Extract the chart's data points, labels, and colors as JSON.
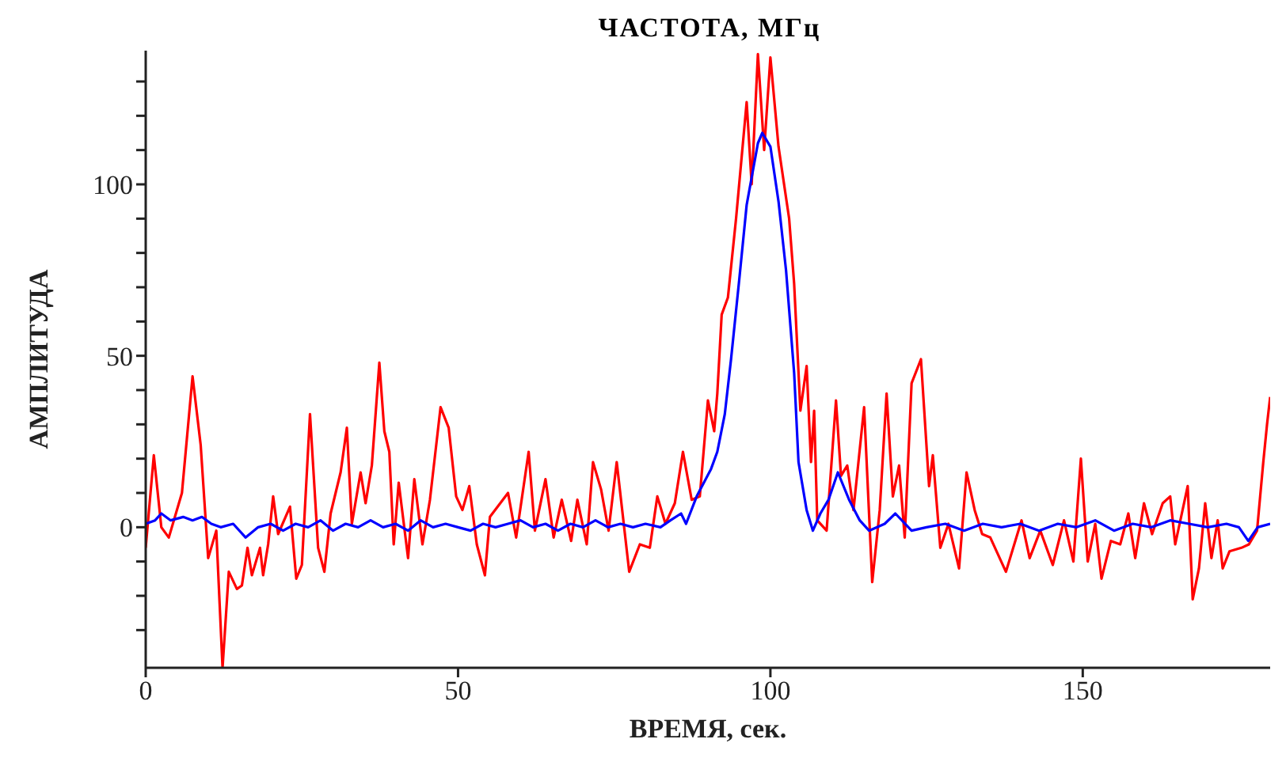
{
  "chart_data": {
    "type": "line",
    "title": "ЧАСТОТА, МГц",
    "xlabel": "ВРЕМЯ, сек.",
    "ylabel": "АМПЛИТУДА",
    "xlim": [
      0,
      180
    ],
    "xticks": [
      0,
      50,
      100,
      150
    ],
    "ylim": [
      -41,
      139
    ],
    "yticks": [
      {
        "value": -30,
        "label": null
      },
      {
        "value": -20,
        "label": null
      },
      {
        "value": -10,
        "label": null
      },
      0,
      {
        "value": 10,
        "label": null
      },
      {
        "value": 20,
        "label": null
      },
      {
        "value": 30,
        "label": null
      },
      {
        "value": 40,
        "label": null
      },
      50,
      {
        "value": 60,
        "label": null
      },
      {
        "value": 70,
        "label": null
      },
      {
        "value": 80,
        "label": null
      },
      {
        "value": 90,
        "label": null
      },
      100,
      {
        "value": 110,
        "label": null
      },
      {
        "value": 120,
        "label": null
      },
      {
        "value": 130,
        "label": null
      }
    ],
    "line_style": "solid",
    "marker": "none",
    "series": [
      {
        "color": "#ff0000",
        "x": [
          0,
          1.3,
          2.5,
          3.7,
          5.8,
          7.5,
          8.8,
          10,
          11.3,
          12.3,
          13.3,
          14.6,
          15.4,
          16.3,
          17,
          18.3,
          18.8,
          19.6,
          20.4,
          21.2,
          23.1,
          24.1,
          25,
          26.3,
          27.6,
          28.6,
          29.6,
          31.2,
          32.2,
          33,
          34.4,
          35.2,
          36.2,
          37.4,
          38.2,
          39,
          39.7,
          40.5,
          42,
          43,
          44.3,
          45.5,
          47.2,
          48.5,
          49.7,
          50.7,
          51.8,
          53,
          54.3,
          55.1,
          58,
          59.3,
          61.3,
          62.3,
          64,
          65.3,
          66.6,
          68.1,
          69.1,
          70.6,
          71.6,
          72.9,
          74.1,
          75.4,
          77.4,
          79.1,
          80.7,
          81.9,
          83.2,
          84.7,
          86,
          87.4,
          88.7,
          90,
          91,
          91.5,
          92.2,
          93.2,
          94.5,
          96.2,
          97,
          98,
          99,
          100,
          101.3,
          103,
          103.8,
          104.8,
          105.8,
          106.5,
          107,
          107.5,
          109,
          110.5,
          111.3,
          112.3,
          113.3,
          115,
          116.3,
          117.5,
          118.6,
          119.6,
          120.6,
          121.5,
          122.6,
          124.1,
          125.4,
          126,
          127.2,
          128.5,
          130.2,
          131.4,
          132.7,
          133.9,
          135.2,
          137.7,
          140.2,
          141.5,
          143.2,
          145.2,
          147,
          148.5,
          149.7,
          150.8,
          152,
          153,
          154.5,
          156,
          157.3,
          158.4,
          159.8,
          161.1,
          162.8,
          164,
          164.8,
          166.8,
          167.6,
          168.6,
          169.6,
          170.6,
          171.6,
          172.4,
          173.5,
          175.4,
          176.6,
          177.9,
          178.9,
          179.5,
          180
        ],
        "values": [
          -6,
          21,
          0,
          -3,
          10,
          44,
          24,
          -9,
          -1,
          -41,
          -13,
          -18,
          -17,
          -6,
          -14,
          -6,
          -14,
          -5,
          9,
          -2,
          6,
          -15,
          -11,
          33,
          -6,
          -13,
          4,
          16,
          29,
          1,
          16,
          7,
          18,
          48,
          28,
          22,
          -5,
          13,
          -9,
          14,
          -5,
          8,
          35,
          29,
          9,
          5,
          12,
          -5,
          -14,
          3,
          10,
          -3,
          22,
          -1,
          14,
          -3,
          8,
          -4,
          8,
          -5,
          19,
          11,
          -1,
          19,
          -13,
          -5,
          -6,
          9,
          1,
          7,
          22,
          8,
          9,
          37,
          28,
          39,
          62,
          67,
          90,
          124,
          100,
          138,
          110,
          137,
          111,
          90,
          71,
          34,
          47,
          19,
          34,
          2,
          -1,
          37,
          15,
          18,
          5,
          35,
          -16,
          5,
          39,
          9,
          18,
          -3,
          42,
          49,
          12,
          21,
          -6,
          1,
          -12,
          16,
          5,
          -2,
          -3,
          -13,
          2,
          -9,
          -1,
          -11,
          2,
          -10,
          20,
          -10,
          1,
          -15,
          -4,
          -5,
          4,
          -9,
          7,
          -2,
          7,
          9,
          -5,
          12,
          -21,
          -12,
          7,
          -9,
          2,
          -12,
          -7,
          -6,
          -5,
          -1,
          19,
          30,
          38
        ]
      },
      {
        "color": "#0000ff",
        "x": [
          0,
          1.5,
          2.5,
          4,
          6,
          7.5,
          9,
          10.5,
          12,
          14,
          16,
          18,
          20,
          22,
          24,
          26,
          28,
          30,
          32,
          34,
          36,
          38,
          40,
          42,
          44,
          46,
          48,
          50,
          52,
          54,
          56,
          58,
          60,
          62,
          64,
          66,
          68,
          70,
          72,
          74,
          76,
          78,
          80,
          82.4,
          84,
          85.7,
          86.5,
          88.2,
          90.5,
          91.5,
          92.7,
          93.7,
          95,
          96.2,
          98,
          98.7,
          100,
          101.3,
          102.5,
          103.8,
          104.5,
          105.8,
          106.8,
          108,
          109.3,
          110.8,
          112.6,
          114.3,
          115.8,
          118.3,
          120,
          122.6,
          125,
          128,
          131,
          134,
          137,
          140,
          143,
          146,
          149,
          152,
          155,
          158,
          161,
          164,
          167,
          170,
          173,
          175,
          176.5,
          178,
          180
        ],
        "values": [
          1,
          2,
          4,
          2,
          3,
          2,
          3,
          1,
          0,
          1,
          -3,
          0,
          1,
          -1,
          1,
          0,
          2,
          -1,
          1,
          0,
          2,
          0,
          1,
          -1,
          2,
          0,
          1,
          0,
          -1,
          1,
          0,
          1,
          2,
          0,
          1,
          -1,
          1,
          0,
          2,
          0,
          1,
          0,
          1,
          0,
          2,
          4,
          1,
          9,
          17,
          22,
          33,
          49,
          72,
          94,
          112,
          115,
          111,
          95,
          75,
          45,
          19,
          5,
          -1,
          4,
          8,
          16,
          8,
          2,
          -1,
          1,
          4,
          -1,
          0,
          1,
          -1,
          1,
          0,
          1,
          -1,
          1,
          0,
          2,
          -1,
          1,
          0,
          2,
          1,
          0,
          1,
          0,
          -4,
          0,
          1
        ]
      }
    ]
  }
}
